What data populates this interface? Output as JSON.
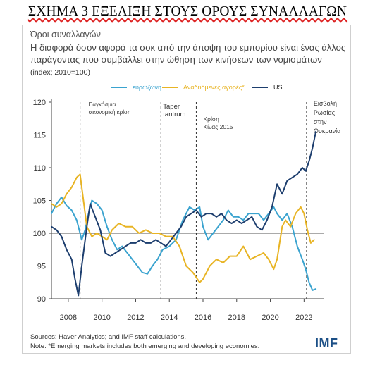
{
  "figure_title": "ΣΧΗΜΑ 3 ΕΞΕΛΙΞΗ ΣΤΟΥΣ ΟΡΟΥΣ ΣΥΝΑΛΛΑΓΩΝ",
  "subtitle": "Όροι συναλλαγών",
  "heading_line1": "Η διαφορά όσον αφορά τα σοκ από την άποψη του εμπορίου είναι ένας άλλος",
  "heading_line2": "παράγοντας που συμβάλλει στην ώθηση των κινήσεων των νομισμάτων",
  "units": "(index; 2010=100)",
  "source_line1": "Sources: Haver Analytics; and IMF staff calculations.",
  "source_line2": "Note: *Emerging markets includes both emerging and developing economies.",
  "logo_text": "IMF",
  "chart_data": {
    "type": "line",
    "xlim": [
      2007,
      2023.2
    ],
    "ylim": [
      90,
      120
    ],
    "yticks": [
      90,
      95,
      100,
      105,
      110,
      115,
      120
    ],
    "xticks": [
      2008,
      2010,
      2012,
      2014,
      2016,
      2018,
      2020,
      2022
    ],
    "reference_line": 100,
    "grid": false,
    "legend_position": "top",
    "legend": [
      {
        "label": "ευρωζώνη",
        "color": "#3aa3cf"
      },
      {
        "label": "Αναδυόμενες αγορές*",
        "color": "#e8b424"
      },
      {
        "label": "US",
        "color": "#1d3e6e"
      }
    ],
    "annotations": [
      {
        "x": 2008.7,
        "lines": [
          "Παγκόσμια",
          "οικονομική κρίση"
        ],
        "dashed_line": true
      },
      {
        "x": 2013.5,
        "lines": [
          "Taper",
          "tantrum"
        ],
        "dashed_line": true
      },
      {
        "x": 2015.6,
        "lines": [
          "Κρίση",
          "Κίνας 2015"
        ],
        "dashed_line": true
      },
      {
        "x": 2022.15,
        "lines": [
          "Εισβολή",
          "Ρωσίας",
          "στην",
          "Ουκρανία"
        ],
        "dashed_line": true
      }
    ],
    "series": [
      {
        "name": "ευρωζώνη",
        "color": "#3aa3cf",
        "points": [
          [
            2007.0,
            103
          ],
          [
            2007.3,
            104.5
          ],
          [
            2007.6,
            105.5
          ],
          [
            2007.9,
            104.2
          ],
          [
            2008.2,
            103.5
          ],
          [
            2008.5,
            102
          ],
          [
            2008.8,
            99
          ],
          [
            2009.0,
            100.5
          ],
          [
            2009.2,
            103
          ],
          [
            2009.4,
            105
          ],
          [
            2009.7,
            104.5
          ],
          [
            2010.0,
            103.5
          ],
          [
            2010.3,
            101
          ],
          [
            2010.6,
            99
          ],
          [
            2010.9,
            97.5
          ],
          [
            2011.2,
            98
          ],
          [
            2011.5,
            97
          ],
          [
            2011.8,
            96
          ],
          [
            2012.1,
            95
          ],
          [
            2012.4,
            94
          ],
          [
            2012.7,
            93.8
          ],
          [
            2013.0,
            95
          ],
          [
            2013.3,
            96
          ],
          [
            2013.6,
            97.5
          ],
          [
            2014.0,
            98
          ],
          [
            2014.4,
            99
          ],
          [
            2014.8,
            102
          ],
          [
            2015.2,
            104
          ],
          [
            2015.5,
            103.5
          ],
          [
            2015.8,
            104
          ],
          [
            2016.0,
            101
          ],
          [
            2016.3,
            99
          ],
          [
            2016.6,
            100
          ],
          [
            2016.9,
            101
          ],
          [
            2017.2,
            102
          ],
          [
            2017.5,
            103.5
          ],
          [
            2017.8,
            102.5
          ],
          [
            2018.1,
            102.5
          ],
          [
            2018.4,
            102
          ],
          [
            2018.7,
            103
          ],
          [
            2019.0,
            103
          ],
          [
            2019.3,
            103
          ],
          [
            2019.6,
            102
          ],
          [
            2019.9,
            103
          ],
          [
            2020.2,
            104
          ],
          [
            2020.4,
            103
          ],
          [
            2020.7,
            102
          ],
          [
            2021.0,
            103
          ],
          [
            2021.3,
            101
          ],
          [
            2021.6,
            98
          ],
          [
            2021.9,
            96
          ],
          [
            2022.1,
            94.5
          ],
          [
            2022.3,
            92.5
          ],
          [
            2022.5,
            91.3
          ],
          [
            2022.7,
            91.5
          ]
        ]
      },
      {
        "name": "Αναδυόμενες αγορές*",
        "color": "#e8b424",
        "points": [
          [
            2007.0,
            104.5
          ],
          [
            2007.3,
            104
          ],
          [
            2007.6,
            104.5
          ],
          [
            2007.9,
            106
          ],
          [
            2008.2,
            107
          ],
          [
            2008.5,
            108.5
          ],
          [
            2008.7,
            109
          ],
          [
            2008.9,
            105
          ],
          [
            2009.1,
            101
          ],
          [
            2009.4,
            99.5
          ],
          [
            2009.7,
            100
          ],
          [
            2010.0,
            99.5
          ],
          [
            2010.3,
            99
          ],
          [
            2010.6,
            100.5
          ],
          [
            2011.0,
            101.5
          ],
          [
            2011.4,
            101
          ],
          [
            2011.8,
            101
          ],
          [
            2012.2,
            100
          ],
          [
            2012.6,
            100.5
          ],
          [
            2013.0,
            100
          ],
          [
            2013.4,
            100
          ],
          [
            2013.8,
            99.5
          ],
          [
            2014.2,
            99.5
          ],
          [
            2014.6,
            98
          ],
          [
            2015.0,
            95
          ],
          [
            2015.4,
            94
          ],
          [
            2015.8,
            92.5
          ],
          [
            2016.0,
            93
          ],
          [
            2016.4,
            95
          ],
          [
            2016.8,
            96
          ],
          [
            2017.2,
            95.5
          ],
          [
            2017.6,
            96.5
          ],
          [
            2018.0,
            96.5
          ],
          [
            2018.4,
            98
          ],
          [
            2018.8,
            96
          ],
          [
            2019.2,
            96.5
          ],
          [
            2019.6,
            97
          ],
          [
            2019.9,
            96
          ],
          [
            2020.2,
            94.5
          ],
          [
            2020.4,
            96
          ],
          [
            2020.7,
            101
          ],
          [
            2020.9,
            102
          ],
          [
            2021.2,
            101
          ],
          [
            2021.5,
            103
          ],
          [
            2021.8,
            104
          ],
          [
            2022.0,
            103
          ],
          [
            2022.2,
            100.5
          ],
          [
            2022.4,
            98.5
          ],
          [
            2022.6,
            99
          ]
        ]
      },
      {
        "name": "US",
        "color": "#1d3e6e",
        "points": [
          [
            2007.0,
            101
          ],
          [
            2007.3,
            100.5
          ],
          [
            2007.6,
            99.5
          ],
          [
            2007.9,
            97.5
          ],
          [
            2008.2,
            96
          ],
          [
            2008.4,
            93
          ],
          [
            2008.6,
            90.5
          ],
          [
            2008.8,
            95
          ],
          [
            2009.1,
            101
          ],
          [
            2009.3,
            104.5
          ],
          [
            2009.6,
            102.5
          ],
          [
            2009.9,
            100.5
          ],
          [
            2010.2,
            97
          ],
          [
            2010.5,
            96.5
          ],
          [
            2010.8,
            97
          ],
          [
            2011.1,
            97.5
          ],
          [
            2011.4,
            98
          ],
          [
            2011.7,
            98.5
          ],
          [
            2012.0,
            98.5
          ],
          [
            2012.3,
            99
          ],
          [
            2012.6,
            98.5
          ],
          [
            2012.9,
            98.5
          ],
          [
            2013.2,
            99
          ],
          [
            2013.5,
            98.5
          ],
          [
            2013.8,
            98
          ],
          [
            2014.1,
            99
          ],
          [
            2014.4,
            100
          ],
          [
            2014.7,
            101
          ],
          [
            2015.0,
            102.5
          ],
          [
            2015.3,
            103
          ],
          [
            2015.6,
            103.5
          ],
          [
            2015.9,
            102.5
          ],
          [
            2016.2,
            103
          ],
          [
            2016.5,
            103
          ],
          [
            2016.8,
            102.5
          ],
          [
            2017.1,
            103
          ],
          [
            2017.4,
            102
          ],
          [
            2017.7,
            101.5
          ],
          [
            2018.0,
            102
          ],
          [
            2018.3,
            101.5
          ],
          [
            2018.6,
            102
          ],
          [
            2018.9,
            102.5
          ],
          [
            2019.2,
            101
          ],
          [
            2019.5,
            100.5
          ],
          [
            2019.8,
            102
          ],
          [
            2020.1,
            104
          ],
          [
            2020.4,
            107.5
          ],
          [
            2020.7,
            106
          ],
          [
            2021.0,
            108
          ],
          [
            2021.3,
            108.5
          ],
          [
            2021.6,
            109
          ],
          [
            2021.9,
            110
          ],
          [
            2022.1,
            109.5
          ],
          [
            2022.3,
            111
          ],
          [
            2022.5,
            113
          ],
          [
            2022.7,
            115.5
          ]
        ]
      }
    ]
  }
}
